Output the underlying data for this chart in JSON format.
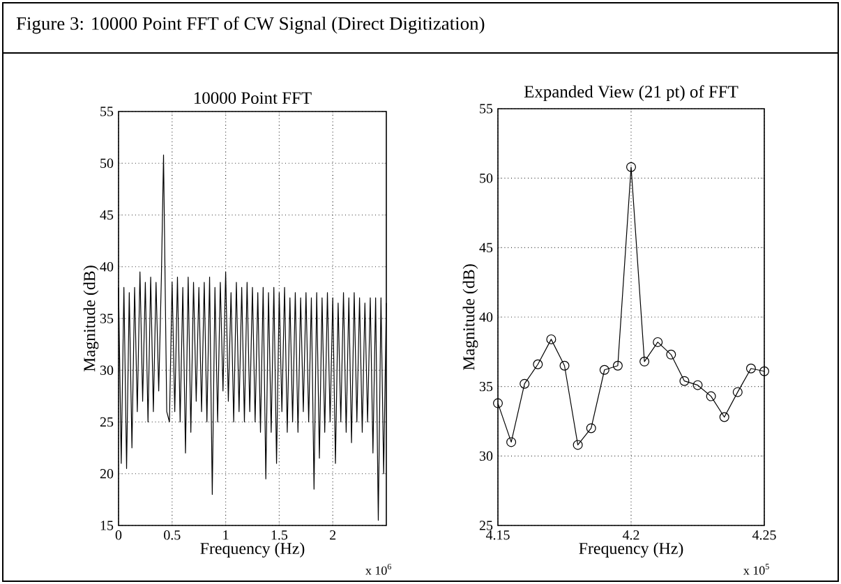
{
  "chart_data": [
    {
      "type": "line",
      "title": "10000 Point FFT",
      "xlabel": "Frequency (Hz)",
      "ylabel": "Magnitude (dB)",
      "annotations": [
        "Figure 3: 10000 Point FFT of CW Signal (Direct Digitization)",
        "x 10$^{6}$"
      ],
      "x": [
        0,
        0.025,
        0.05,
        0.075,
        0.1,
        0.125,
        0.15,
        0.175,
        0.2,
        0.225,
        0.25,
        0.275,
        0.3,
        0.325,
        0.35,
        0.375,
        0.4,
        0.42,
        0.45,
        0.475,
        0.5,
        0.525,
        0.55,
        0.575,
        0.6,
        0.625,
        0.65,
        0.675,
        0.7,
        0.725,
        0.75,
        0.775,
        0.8,
        0.825,
        0.85,
        0.875,
        0.9,
        0.925,
        0.95,
        0.975,
        1.0,
        1.025,
        1.05,
        1.075,
        1.1,
        1.125,
        1.15,
        1.175,
        1.2,
        1.225,
        1.25,
        1.275,
        1.3,
        1.325,
        1.35,
        1.375,
        1.4,
        1.425,
        1.45,
        1.475,
        1.5,
        1.525,
        1.55,
        1.575,
        1.6,
        1.625,
        1.65,
        1.675,
        1.7,
        1.725,
        1.75,
        1.775,
        1.8,
        1.825,
        1.85,
        1.875,
        1.9,
        1.925,
        1.95,
        1.975,
        2.0,
        2.025,
        2.05,
        2.075,
        2.1,
        2.125,
        2.15,
        2.175,
        2.2,
        2.225,
        2.25,
        2.275,
        2.3,
        2.325,
        2.35,
        2.375,
        2.4,
        2.425,
        2.45,
        2.475,
        2.5
      ],
      "series": [
        {
          "color": "#000000",
          "values": [
            38,
            21,
            38,
            20.5,
            37.5,
            22.5,
            38,
            26,
            39.5,
            27,
            38.5,
            25,
            39,
            26,
            38.5,
            28,
            39,
            50.8,
            26,
            25,
            38.5,
            26,
            39,
            25,
            38,
            22,
            39,
            24,
            38.5,
            27,
            38,
            26,
            38.5,
            25,
            39,
            18,
            38,
            25,
            38.5,
            28,
            39.5,
            27,
            37.5,
            25,
            38.5,
            26,
            38,
            25,
            38.5,
            26,
            38,
            25,
            37.5,
            24,
            38,
            19.5,
            37.5,
            24,
            38,
            21,
            37.5,
            26,
            38,
            24,
            37,
            25,
            37.5,
            24,
            37,
            26,
            37.5,
            25,
            37,
            18.5,
            37.5,
            21.5,
            37,
            24,
            37.5,
            25,
            37,
            21,
            36.5,
            25,
            37.5,
            24,
            37,
            23,
            37.5,
            25,
            37,
            24,
            36.5,
            25,
            37,
            22,
            37,
            15.5,
            37,
            20,
            36.5
          ]
        }
      ],
      "xlim": [
        0,
        2.5
      ],
      "xticks": [
        0,
        0.5,
        1,
        1.5,
        2
      ],
      "ylim": [
        15,
        55
      ],
      "yticks": [
        15,
        20,
        25,
        30,
        35,
        40,
        45,
        50,
        55
      ],
      "grid": true,
      "marker": "none"
    },
    {
      "type": "line",
      "title": "Expanded View (21 pt) of FFT",
      "xlabel": "Frequency (Hz)",
      "ylabel": "Magnitude (dB)",
      "annotations": [
        "x 10$^{5}$"
      ],
      "x": [
        4.15,
        4.155,
        4.16,
        4.165,
        4.17,
        4.175,
        4.18,
        4.185,
        4.19,
        4.195,
        4.2,
        4.205,
        4.21,
        4.215,
        4.22,
        4.225,
        4.23,
        4.235,
        4.24,
        4.245,
        4.25
      ],
      "series": [
        {
          "color": "#000000",
          "values": [
            33.8,
            31.0,
            35.2,
            36.6,
            38.4,
            36.5,
            30.8,
            32.0,
            36.2,
            36.5,
            50.8,
            36.8,
            38.2,
            37.3,
            35.4,
            35.1,
            34.3,
            32.8,
            34.6,
            36.3,
            36.1
          ]
        }
      ],
      "xlim": [
        4.15,
        4.25
      ],
      "xticks": [
        4.15,
        4.2,
        4.25
      ],
      "ylim": [
        25,
        55
      ],
      "yticks": [
        25,
        30,
        35,
        40,
        45,
        50,
        55
      ],
      "grid": true,
      "marker": "circle"
    }
  ]
}
